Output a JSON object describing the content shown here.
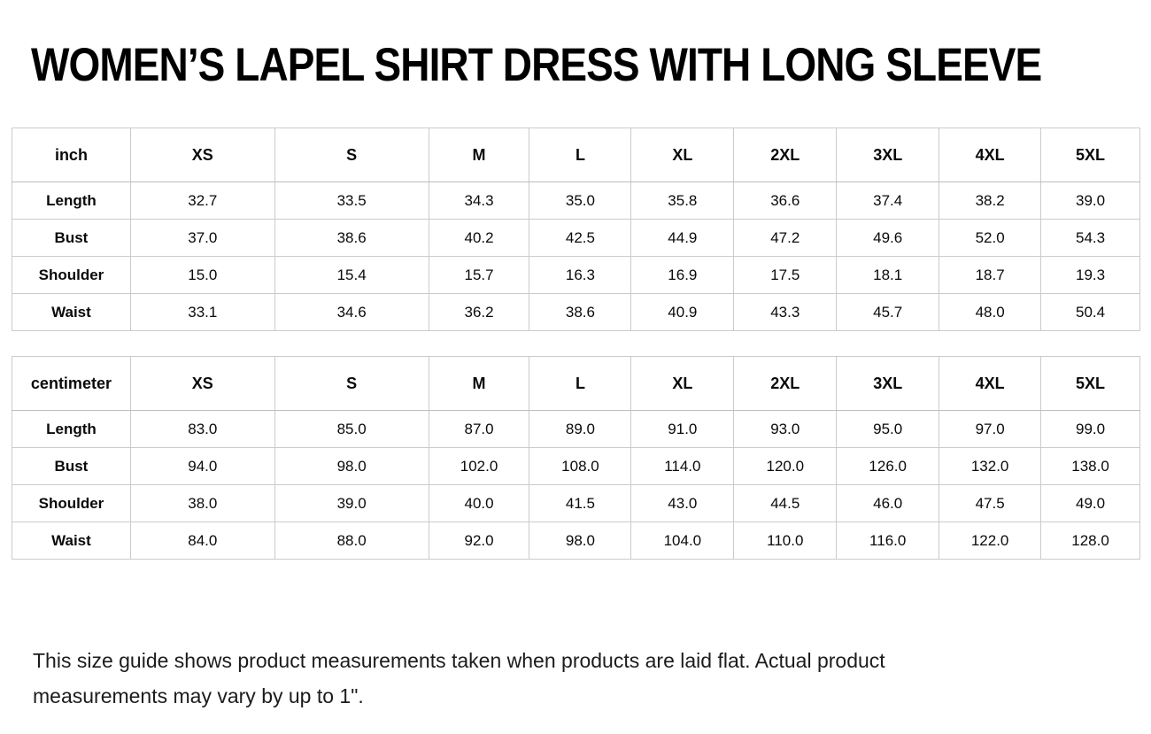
{
  "title": "WOMEN’S LAPEL SHIRT DRESS WITH LONG SLEEVE",
  "tables": [
    {
      "unit_label": "inch",
      "columns": [
        "XS",
        "S",
        "M",
        "L",
        "XL",
        "2XL",
        "3XL",
        "4XL",
        "5XL"
      ],
      "rows": [
        {
          "label": "Length",
          "values": [
            "32.7",
            "33.5",
            "34.3",
            "35.0",
            "35.8",
            "36.6",
            "37.4",
            "38.2",
            "39.0"
          ]
        },
        {
          "label": "Bust",
          "values": [
            "37.0",
            "38.6",
            "40.2",
            "42.5",
            "44.9",
            "47.2",
            "49.6",
            "52.0",
            "54.3"
          ]
        },
        {
          "label": "Shoulder",
          "values": [
            "15.0",
            "15.4",
            "15.7",
            "16.3",
            "16.9",
            "17.5",
            "18.1",
            "18.7",
            "19.3"
          ]
        },
        {
          "label": "Waist",
          "values": [
            "33.1",
            "34.6",
            "36.2",
            "38.6",
            "40.9",
            "43.3",
            "45.7",
            "48.0",
            "50.4"
          ]
        }
      ]
    },
    {
      "unit_label": "centimeter",
      "columns": [
        "XS",
        "S",
        "M",
        "L",
        "XL",
        "2XL",
        "3XL",
        "4XL",
        "5XL"
      ],
      "rows": [
        {
          "label": "Length",
          "values": [
            "83.0",
            "85.0",
            "87.0",
            "89.0",
            "91.0",
            "93.0",
            "95.0",
            "97.0",
            "99.0"
          ]
        },
        {
          "label": "Bust",
          "values": [
            "94.0",
            "98.0",
            "102.0",
            "108.0",
            "114.0",
            "120.0",
            "126.0",
            "132.0",
            "138.0"
          ]
        },
        {
          "label": "Shoulder",
          "values": [
            "38.0",
            "39.0",
            "40.0",
            "41.5",
            "43.0",
            "44.5",
            "46.0",
            "47.5",
            "49.0"
          ]
        },
        {
          "label": "Waist",
          "values": [
            "84.0",
            "88.0",
            "92.0",
            "98.0",
            "104.0",
            "110.0",
            "116.0",
            "122.0",
            "128.0"
          ]
        }
      ]
    }
  ],
  "footer_note": "This size guide shows product measurements taken when products are laid flat. Actual product measurements may vary by up to 1\"."
}
